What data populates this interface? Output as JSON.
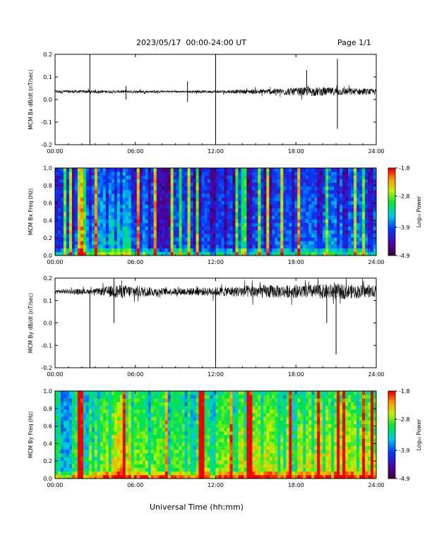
{
  "header": {
    "date_range": "2023/05/17  00:00-24:00 UT",
    "page": "Page 1/1"
  },
  "xlabel": "Universal Time (hh:mm)",
  "chart_data": [
    {
      "type": "line",
      "ylabel": "MCM Bx dB/dt (nT/sec)",
      "xticks": [
        "00:00",
        "06:00",
        "12:00",
        "18:00",
        "24:00"
      ],
      "yticks": [
        "-0.2",
        "-0.1",
        "0.0",
        "0.1",
        "0.2"
      ],
      "xlim": [
        0,
        24
      ],
      "ylim": [
        -0.2,
        0.2
      ],
      "baseline": 0.035,
      "noise_envelope": [
        [
          0,
          0.007
        ],
        [
          3,
          0.006
        ],
        [
          6,
          0.006
        ],
        [
          9,
          0.004
        ],
        [
          12,
          0.006
        ],
        [
          15,
          0.01
        ],
        [
          17,
          0.015
        ],
        [
          19,
          0.02
        ],
        [
          21,
          0.018
        ],
        [
          24,
          0.012
        ]
      ],
      "spikes": [
        {
          "x": 2.6,
          "y": [
            -0.2,
            0.2
          ]
        },
        {
          "x": 12.0,
          "y": [
            -0.2,
            0.2
          ]
        },
        {
          "x": 9.9,
          "y": [
            -0.01,
            0.08
          ]
        },
        {
          "x": 5.3,
          "y": [
            0.0,
            0.06
          ]
        },
        {
          "x": 18.8,
          "y": [
            0.05,
            0.13
          ]
        },
        {
          "x": 21.1,
          "y": [
            -0.13,
            0.18
          ]
        }
      ]
    },
    {
      "type": "heatmap",
      "ylabel": "MCM Bx Freq (Hz)",
      "xticks": [
        "00:00",
        "06:00",
        "12:00",
        "18:00",
        "24:00"
      ],
      "yticks": [
        "0.0",
        "0.2",
        "0.4",
        "0.6",
        "0.8",
        "1.0"
      ],
      "xlim": [
        0,
        24
      ],
      "ylim": [
        0,
        1.0
      ],
      "colorbar": {
        "label": "Log₁₀ Power",
        "ticks": [
          "-1.8",
          "-2.8",
          "-3.9",
          "-4.9"
        ],
        "range": [
          -4.9,
          -1.8
        ]
      },
      "base_level": 0.22,
      "activity": [
        [
          0,
          0.25
        ],
        [
          3,
          0.45
        ],
        [
          5,
          0.55
        ],
        [
          7,
          0.35
        ],
        [
          12,
          0.3
        ],
        [
          18,
          0.35
        ],
        [
          21,
          0.4
        ],
        [
          24,
          0.35
        ]
      ]
    },
    {
      "type": "line",
      "ylabel": "MCM By dB/dt (nT/sec)",
      "xticks": [
        "00:00",
        "06:00",
        "12:00",
        "18:00",
        "24:00"
      ],
      "yticks": [
        "-0.2",
        "-0.1",
        "0.0",
        "0.1",
        "0.2"
      ],
      "xlim": [
        0,
        24
      ],
      "ylim": [
        -0.2,
        0.2
      ],
      "baseline": 0.14,
      "noise_envelope": [
        [
          0,
          0.01
        ],
        [
          3,
          0.012
        ],
        [
          4.5,
          0.03
        ],
        [
          6,
          0.028
        ],
        [
          8,
          0.015
        ],
        [
          11,
          0.018
        ],
        [
          13,
          0.022
        ],
        [
          15,
          0.03
        ],
        [
          18,
          0.028
        ],
        [
          21,
          0.035
        ],
        [
          24,
          0.025
        ]
      ],
      "spikes": [
        {
          "x": 2.6,
          "y": [
            -0.2,
            0.14
          ]
        },
        {
          "x": 12.0,
          "y": [
            -0.2,
            0.14
          ]
        },
        {
          "x": 21.0,
          "y": [
            -0.14,
            0.12
          ]
        },
        {
          "x": 20.3,
          "y": [
            0.0,
            0.14
          ]
        },
        {
          "x": 4.4,
          "y": [
            0.0,
            0.2
          ]
        }
      ]
    },
    {
      "type": "heatmap",
      "ylabel": "MCM By Freq (Hz)",
      "xticks": [
        "00:00",
        "06:00",
        "12:00",
        "18:00",
        "24:00"
      ],
      "yticks": [
        "0.0",
        "0.2",
        "0.4",
        "0.6",
        "0.8",
        "1.0"
      ],
      "xlim": [
        0,
        24
      ],
      "ylim": [
        0,
        1.0
      ],
      "colorbar": {
        "label": "Log₁₀ Power",
        "ticks": [
          "-1.8",
          "-2.8",
          "-3.9",
          "-4.9"
        ],
        "range": [
          -4.9,
          -1.8
        ]
      },
      "base_level": 0.5,
      "activity": [
        [
          0,
          0.55
        ],
        [
          4,
          0.75
        ],
        [
          5,
          0.95
        ],
        [
          6,
          0.7
        ],
        [
          9,
          0.65
        ],
        [
          12,
          0.7
        ],
        [
          14,
          0.8
        ],
        [
          17,
          0.75
        ],
        [
          20,
          0.8
        ],
        [
          24,
          0.75
        ]
      ]
    }
  ]
}
